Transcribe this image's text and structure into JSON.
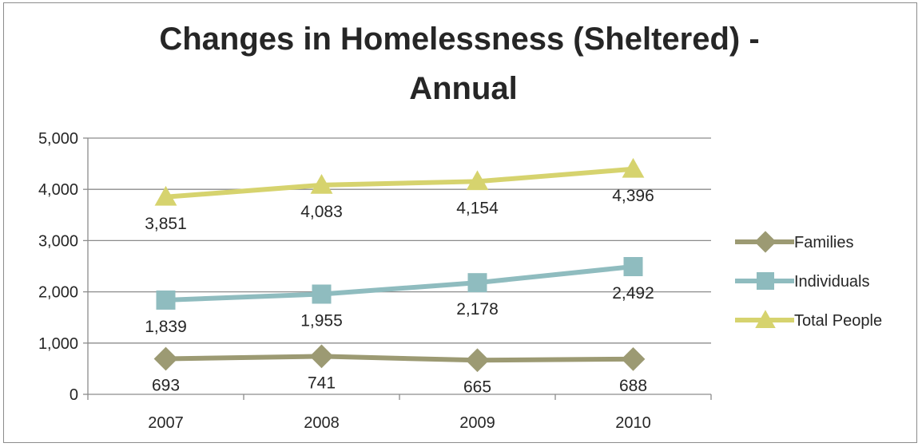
{
  "chart_data": {
    "type": "line",
    "title": [
      "Changes in Homelessness (Sheltered) -",
      "Annual"
    ],
    "categories": [
      "2007",
      "2008",
      "2009",
      "2010"
    ],
    "ylim": [
      0,
      5000
    ],
    "yticks": [
      0,
      1000,
      2000,
      3000,
      4000,
      5000
    ],
    "ytick_labels": [
      "0",
      "1,000",
      "2,000",
      "3,000",
      "4,000",
      "5,000"
    ],
    "grid": true,
    "legend_position": "right",
    "series": [
      {
        "name": "Families",
        "values": [
          693,
          741,
          665,
          688
        ],
        "labels": [
          "693",
          "741",
          "665",
          "688"
        ],
        "color": "#9c9a73",
        "marker": "diamond"
      },
      {
        "name": "Individuals",
        "values": [
          1839,
          1955,
          2178,
          2492
        ],
        "labels": [
          "1,839",
          "1,955",
          "2,178",
          "2,492"
        ],
        "color": "#8fbcbf",
        "marker": "square"
      },
      {
        "name": "Total People",
        "values": [
          3851,
          4083,
          4154,
          4396
        ],
        "labels": [
          "3,851",
          "4,083",
          "4,154",
          "4,396"
        ],
        "color": "#d6d36e",
        "marker": "triangle"
      }
    ]
  }
}
